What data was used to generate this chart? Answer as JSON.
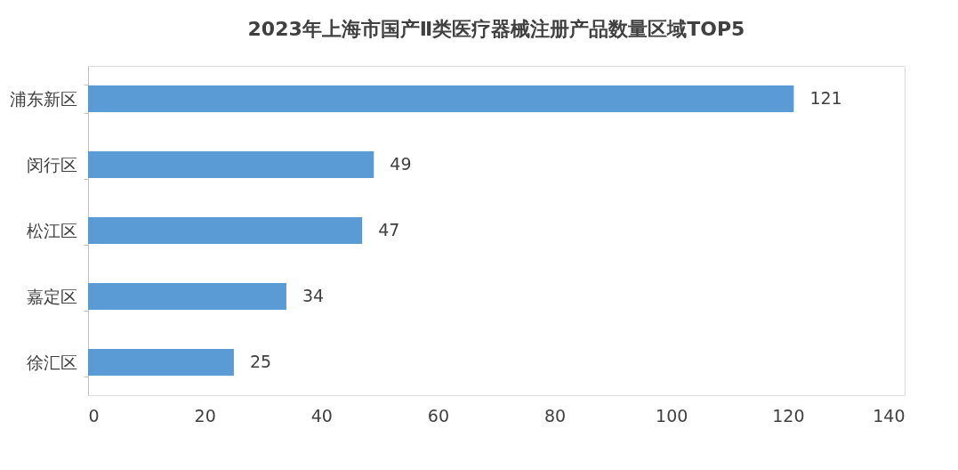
{
  "chart_data": {
    "type": "bar",
    "orientation": "horizontal",
    "title": "2023年上海市国产Ⅱ类医疗器械注册产品数量区域TOP5",
    "categories": [
      "浦东新区",
      "闵行区",
      "松江区",
      "嘉定区",
      "徐汇区"
    ],
    "values": [
      121,
      49,
      47,
      34,
      25
    ],
    "color": "#5b9bd5",
    "xlim": [
      0,
      140
    ],
    "xticks": [
      0,
      20,
      40,
      60,
      80,
      100,
      120,
      140
    ],
    "grid": false,
    "data_labels": true
  }
}
